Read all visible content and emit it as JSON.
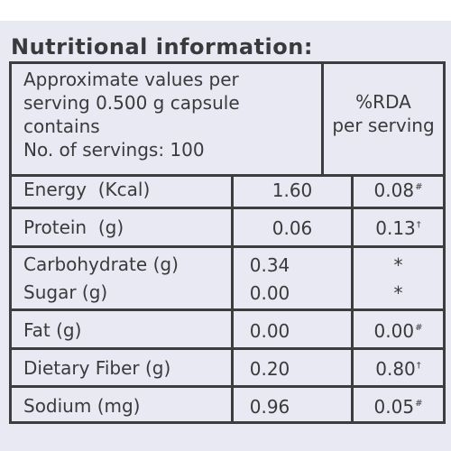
{
  "title": "Nutritional information:",
  "header": {
    "left_lines": [
      "Approximate values per",
      "serving 0.500 g capsule",
      "contains",
      "No. of servings: 100"
    ],
    "right_lines": [
      "%RDA",
      "per serving"
    ]
  },
  "rows": [
    {
      "name": "Energy  (Kcal)",
      "value": "1.60",
      "rda": "0.08",
      "mark": "#"
    },
    {
      "name": "Protein  (g)",
      "value": "0.06",
      "rda": "0.13",
      "mark": "†"
    },
    {
      "name": "Carbohydrate (g)",
      "value": "0.34",
      "rda": "*",
      "mark": ""
    },
    {
      "name": "Sugar (g)",
      "value": "0.00",
      "rda": "*",
      "mark": ""
    },
    {
      "name": "Fat (g)",
      "value": "0.00",
      "rda": "0.00",
      "mark": "#"
    },
    {
      "name": "Dietary Fiber (g)",
      "value": "0.20",
      "rda": "0.80",
      "mark": "†"
    },
    {
      "name": "Sodium (mg)",
      "value": "0.96",
      "rda": "0.05",
      "mark": "#"
    }
  ],
  "colors": {
    "panel_background": "#e9e9f3",
    "text": "#3a3a3c",
    "rules": "#3d3d3f"
  }
}
